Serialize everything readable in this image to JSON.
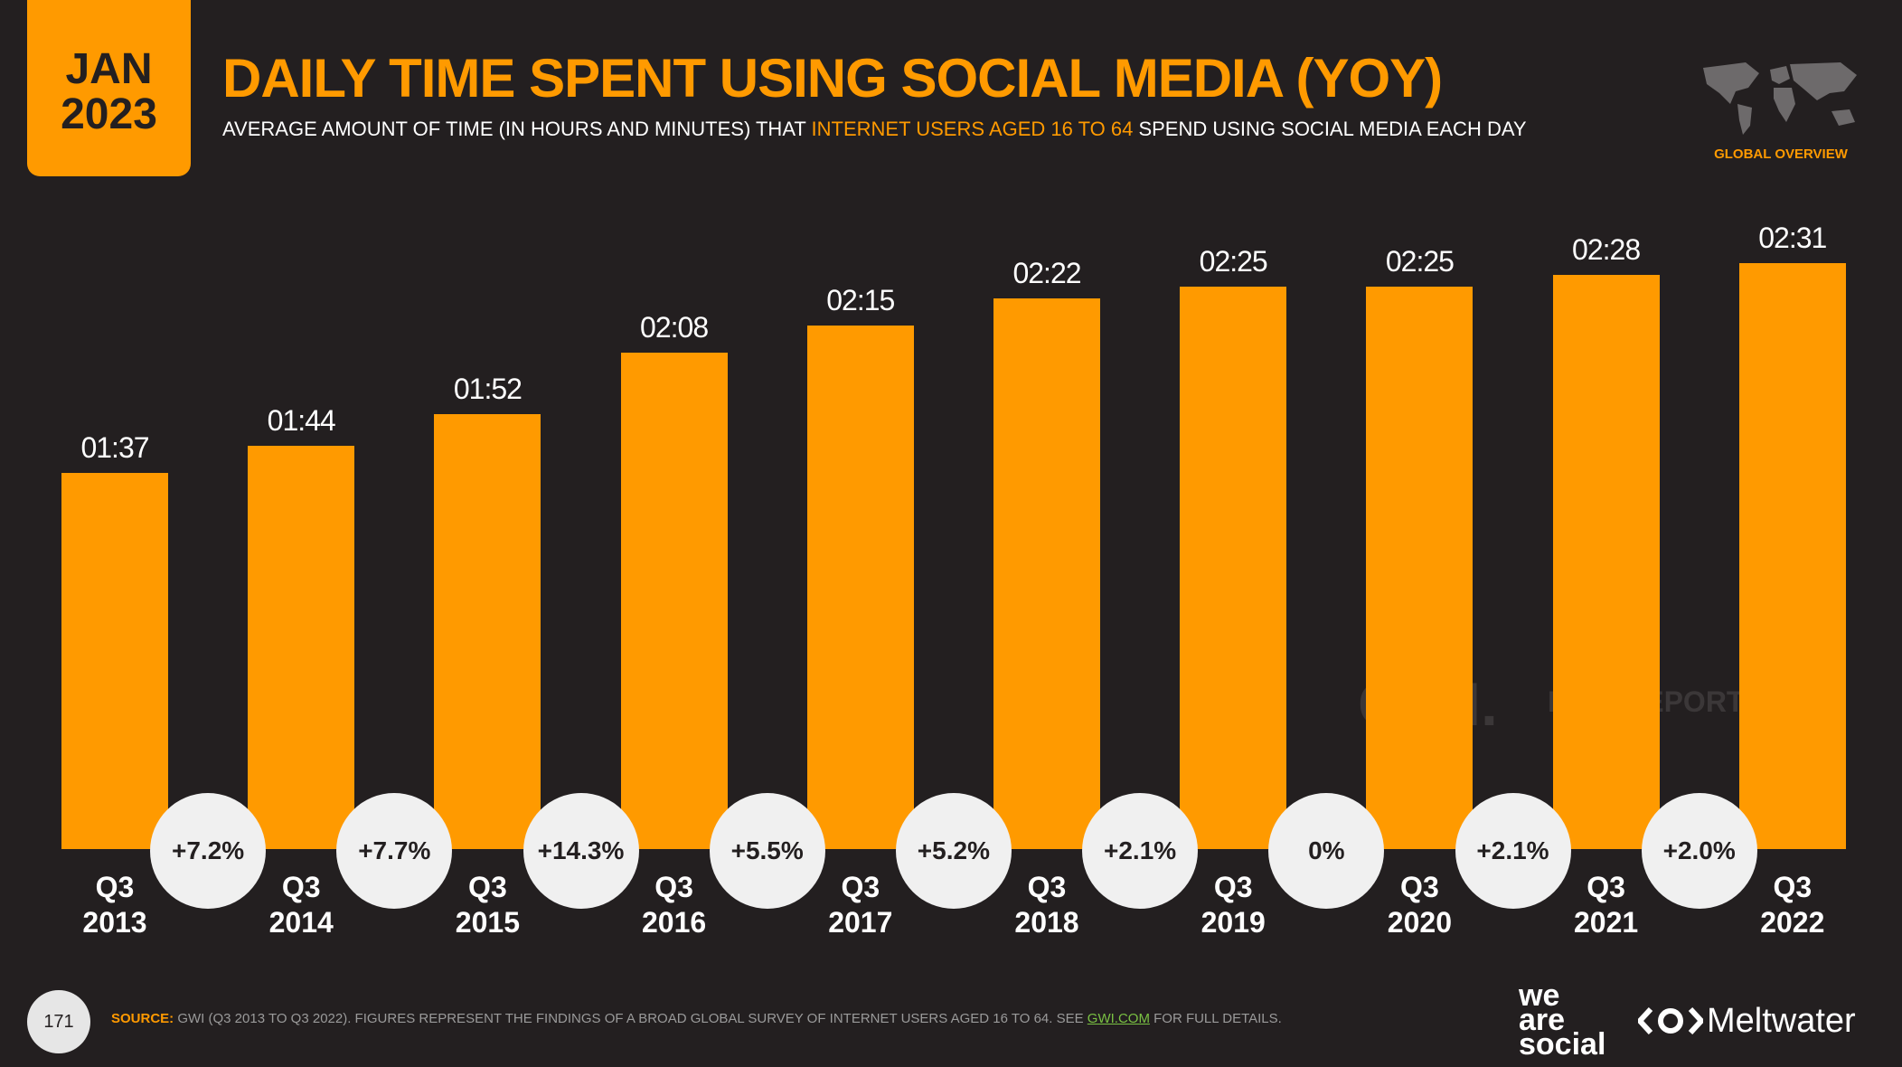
{
  "badge": {
    "month": "JAN",
    "year": "2023"
  },
  "header": {
    "region": "GLOBAL OVERVIEW"
  },
  "chart_data": {
    "type": "bar",
    "title": "DAILY TIME SPENT USING SOCIAL MEDIA (YOY)",
    "subtitle": [
      "AVERAGE AMOUNT OF TIME (IN HOURS AND MINUTES) THAT",
      "INTERNET USERS AGED 16 TO 64",
      "SPEND USING SOCIAL MEDIA EACH DAY"
    ],
    "categories": [
      "Q3 2013",
      "Q3 2014",
      "Q3 2015",
      "Q3 2016",
      "Q3 2017",
      "Q3 2018",
      "Q3 2019",
      "Q3 2020",
      "Q3 2021",
      "Q3 2022"
    ],
    "values": [
      97,
      104,
      112,
      128,
      135,
      142,
      145,
      145,
      148,
      151
    ],
    "value_labels": [
      "01:37",
      "01:44",
      "01:52",
      "02:08",
      "02:15",
      "02:22",
      "02:25",
      "02:25",
      "02:28",
      "02:31"
    ],
    "color": "#ff9a00",
    "changes": {
      "values": [
        7.2,
        7.7,
        14.3,
        5.5,
        5.2,
        2.1,
        0,
        2.1,
        2.0
      ],
      "value_labels": [
        "+7.2%",
        "+7.7%",
        "+14.3%",
        "+5.5%",
        "+5.2%",
        "+2.1%",
        "0%",
        "+2.1%",
        "+2.0%"
      ]
    }
  },
  "watermark": [
    "GWI.",
    "DATAREPORTAL"
  ],
  "footer": {
    "page": "171",
    "source_label": "SOURCE:",
    "source_text": "GWI (Q3 2013 TO Q3 2022). FIGURES REPRESENT THE FINDINGS OF A BROAD GLOBAL SURVEY OF INTERNET USERS AGED 16 TO 64. SEE",
    "source_link": "GWI.COM",
    "source_end": "FOR FULL DETAILS.",
    "logo_1": [
      "we",
      "are",
      "social"
    ],
    "logo_2": "Meltwater"
  }
}
